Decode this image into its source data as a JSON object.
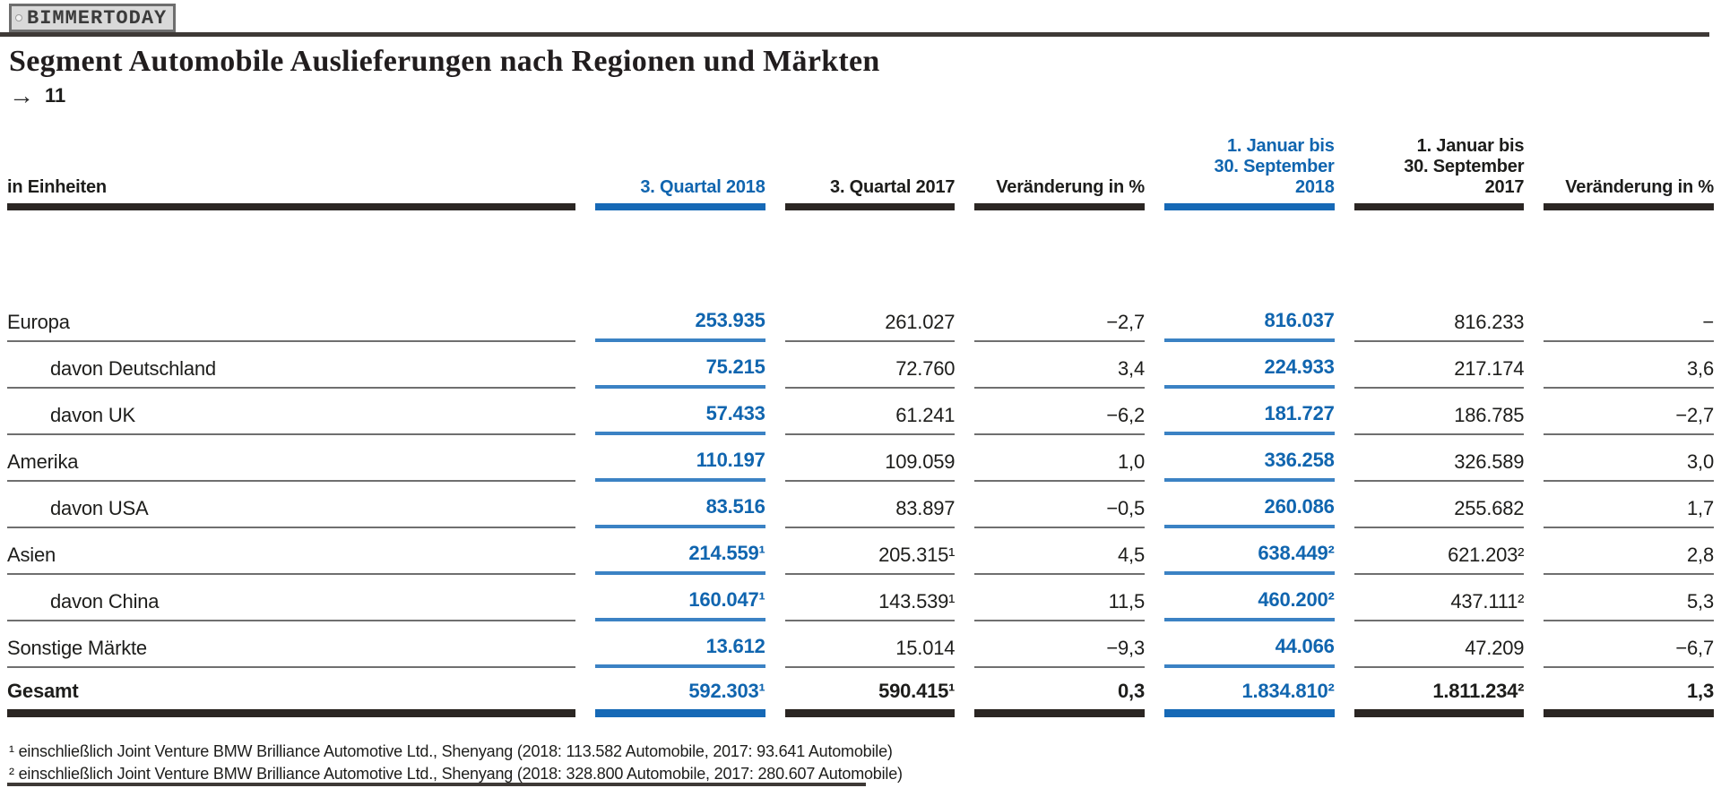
{
  "logo": {
    "text": "BIMMERTODAY"
  },
  "page": {
    "title": "Segment Automobile Auslieferungen nach Regionen und Märkten",
    "reference_arrow": "→",
    "reference_number": "11"
  },
  "colors": {
    "accent_blue_text": "#1065af",
    "accent_blue_line": "#1669b6",
    "dark_bar": "#2b2623",
    "row_line_gray": "#6f6f6f"
  },
  "table": {
    "unit_label": "in Einheiten",
    "columns": [
      {
        "label": "3. Quartal 2018",
        "highlight": true
      },
      {
        "label": "3. Quartal 2017",
        "highlight": false
      },
      {
        "label": "Veränderung in %",
        "highlight": false
      },
      {
        "label": "1. Januar bis\n30. September\n2018",
        "highlight": true
      },
      {
        "label": "1. Januar bis\n30. September\n2017",
        "highlight": false
      },
      {
        "label": "Veränderung in %",
        "highlight": false
      }
    ],
    "rows": [
      {
        "label": "Europa",
        "indent": false,
        "total": false,
        "values": [
          "253.935",
          "261.027",
          "−2,7",
          "816.037",
          "816.233",
          "−"
        ]
      },
      {
        "label": "davon Deutschland",
        "indent": true,
        "total": false,
        "values": [
          "75.215",
          "72.760",
          "3,4",
          "224.933",
          "217.174",
          "3,6"
        ]
      },
      {
        "label": "davon UK",
        "indent": true,
        "total": false,
        "values": [
          "57.433",
          "61.241",
          "−6,2",
          "181.727",
          "186.785",
          "−2,7"
        ]
      },
      {
        "label": "Amerika",
        "indent": false,
        "total": false,
        "values": [
          "110.197",
          "109.059",
          "1,0",
          "336.258",
          "326.589",
          "3,0"
        ]
      },
      {
        "label": "davon USA",
        "indent": true,
        "total": false,
        "values": [
          "83.516",
          "83.897",
          "−0,5",
          "260.086",
          "255.682",
          "1,7"
        ]
      },
      {
        "label": "Asien",
        "indent": false,
        "total": false,
        "values": [
          "214.559¹",
          "205.315¹",
          "4,5",
          "638.449²",
          "621.203²",
          "2,8"
        ]
      },
      {
        "label": "davon China",
        "indent": true,
        "total": false,
        "values": [
          "160.047¹",
          "143.539¹",
          "11,5",
          "460.200²",
          "437.111²",
          "5,3"
        ]
      },
      {
        "label": "Sonstige Märkte",
        "indent": false,
        "total": false,
        "values": [
          "13.612",
          "15.014",
          "−9,3",
          "44.066",
          "47.209",
          "−6,7"
        ]
      },
      {
        "label": "Gesamt",
        "indent": false,
        "total": true,
        "values": [
          "592.303¹",
          "590.415¹",
          "0,3",
          "1.834.810²",
          "1.811.234²",
          "1,3"
        ]
      }
    ],
    "footnotes": [
      "¹ einschließlich Joint Venture BMW Brilliance Automotive Ltd., Shenyang (2018: 113.582 Automobile, 2017: 93.641 Automobile)",
      "² einschließlich Joint Venture BMW Brilliance Automotive Ltd., Shenyang (2018: 328.800 Automobile, 2017: 280.607 Automobile)"
    ]
  }
}
